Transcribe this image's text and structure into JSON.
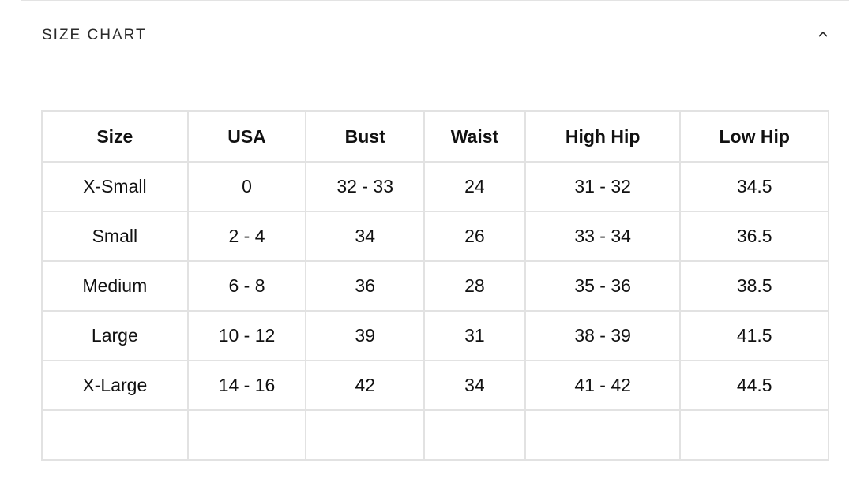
{
  "section": {
    "title": "SIZE CHART",
    "toggle_icon": "chevron-up-icon"
  },
  "table": {
    "headers": [
      "Size",
      "USA",
      "Bust",
      "Waist",
      "High Hip",
      "Low Hip"
    ],
    "rows": [
      [
        "X-Small",
        "0",
        "32 - 33",
        "24",
        "31 - 32",
        "34.5"
      ],
      [
        "Small",
        "2 - 4",
        "34",
        "26",
        "33 - 34",
        "36.5"
      ],
      [
        "Medium",
        "6 - 8",
        "36",
        "28",
        "35 - 36",
        "38.5"
      ],
      [
        "Large",
        "10 - 12",
        "39",
        "31",
        "38 - 39",
        "41.5"
      ],
      [
        "X-Large",
        "14 - 16",
        "42",
        "34",
        "41 - 42",
        "44.5"
      ],
      [
        "",
        "",
        "",
        "",
        "",
        ""
      ]
    ]
  }
}
